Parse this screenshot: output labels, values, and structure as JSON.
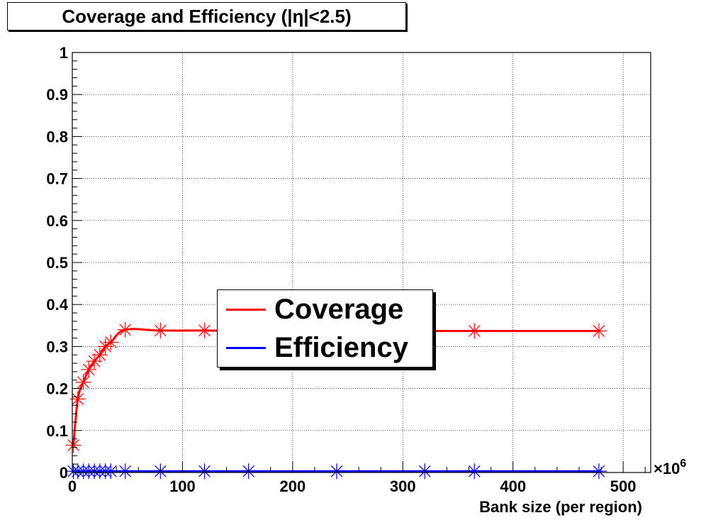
{
  "title": "Coverage and Efficiency (|η|<2.5)",
  "chart_data": {
    "type": "line",
    "title": "Coverage and Efficiency (|η|<2.5)",
    "xlabel": "Bank size (per region)",
    "xunit_multiplier": "×10",
    "xunit_exponent": "6",
    "ylabel": "",
    "xlim": [
      0,
      525
    ],
    "ylim": [
      0,
      1
    ],
    "xticks": [
      "0",
      "100",
      "200",
      "300",
      "400",
      "500"
    ],
    "yticks": [
      "0",
      "0.1",
      "0.2",
      "0.3",
      "0.4",
      "0.5",
      "0.6",
      "0.7",
      "0.8",
      "0.9",
      "1"
    ],
    "grid": true,
    "legend_position": "center",
    "series": [
      {
        "name": "Coverage",
        "color": "#ff0000",
        "marker": "star",
        "points": [
          [
            1,
            0.065
          ],
          [
            5,
            0.175
          ],
          [
            10,
            0.215
          ],
          [
            15,
            0.245
          ],
          [
            20,
            0.265
          ],
          [
            25,
            0.28
          ],
          [
            30,
            0.3
          ],
          [
            35,
            0.31
          ],
          [
            48,
            0.34
          ],
          [
            80,
            0.338
          ],
          [
            120,
            0.338
          ],
          [
            160,
            0.337
          ],
          [
            240,
            0.337
          ],
          [
            320,
            0.337
          ],
          [
            365,
            0.337
          ],
          [
            478,
            0.337
          ]
        ]
      },
      {
        "name": "Efficiency",
        "color": "#0000ff",
        "marker": "star",
        "points": [
          [
            1,
            0.003
          ],
          [
            5,
            0.003
          ],
          [
            10,
            0.003
          ],
          [
            15,
            0.003
          ],
          [
            20,
            0.003
          ],
          [
            25,
            0.003
          ],
          [
            30,
            0.003
          ],
          [
            35,
            0.003
          ],
          [
            48,
            0.003
          ],
          [
            80,
            0.003
          ],
          [
            120,
            0.003
          ],
          [
            160,
            0.003
          ],
          [
            240,
            0.003
          ],
          [
            320,
            0.003
          ],
          [
            365,
            0.003
          ],
          [
            478,
            0.003
          ]
        ]
      }
    ]
  }
}
